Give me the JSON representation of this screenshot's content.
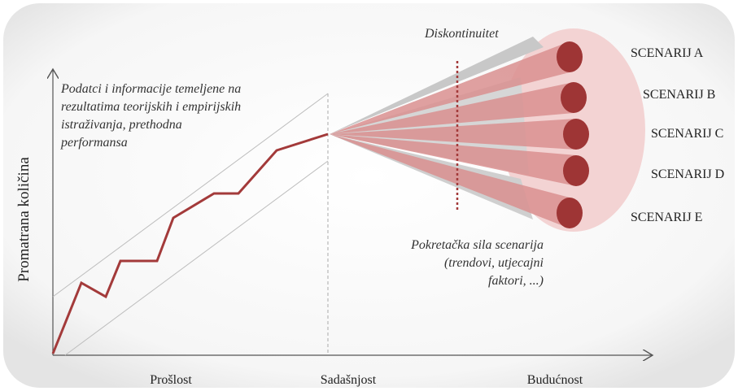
{
  "diagram": {
    "y_axis_label": "Promatrana količina",
    "x_axis_labels": [
      "Prošlost",
      "Sadašnjost",
      "Budućnost"
    ],
    "discontinuity_label": "Diskontinuitet",
    "past_note": [
      "Podatci i informacije temeljene na",
      "rezultatima teorijskih i empirijskih",
      "istraživanja, prethodna",
      "performansa"
    ],
    "driver_note": [
      "Pokretačka sila scenarija",
      "(trendovi, utjecajni",
      "faktori, ...)"
    ],
    "scenarios": [
      "SCENARIJ A",
      "SCENARIJ B",
      "SCENARIJ C",
      "SCENARIJ D",
      "SCENARIJ E"
    ]
  }
}
